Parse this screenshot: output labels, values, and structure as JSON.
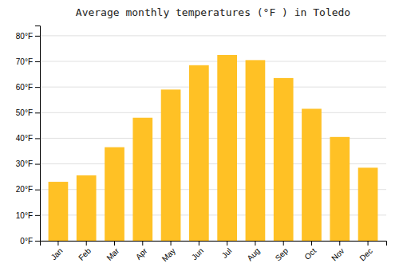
{
  "chart_data": {
    "type": "bar",
    "title": "Average monthly temperatures (°F ) in Toledo",
    "categories": [
      "Jan",
      "Feb",
      "Mar",
      "Apr",
      "May",
      "Jun",
      "Jul",
      "Aug",
      "Sep",
      "Oct",
      "Nov",
      "Dec"
    ],
    "values": [
      23,
      25.5,
      36.5,
      48,
      59,
      68.5,
      72.5,
      70.5,
      63.5,
      51.5,
      40.5,
      28.5
    ],
    "color": "#FFC125",
    "ylim": [
      0,
      84
    ],
    "yticks": [
      {
        "value": 0,
        "label": "0°F"
      },
      {
        "value": 10,
        "label": "10°F"
      },
      {
        "value": 20,
        "label": "20°F"
      },
      {
        "value": 30,
        "label": "30°F"
      },
      {
        "value": 40,
        "label": "40°F"
      },
      {
        "value": 50,
        "label": "50°F"
      },
      {
        "value": 60,
        "label": "60°F"
      },
      {
        "value": 70,
        "label": "70°F"
      },
      {
        "value": 80,
        "label": "80°F"
      }
    ],
    "grid": true
  }
}
